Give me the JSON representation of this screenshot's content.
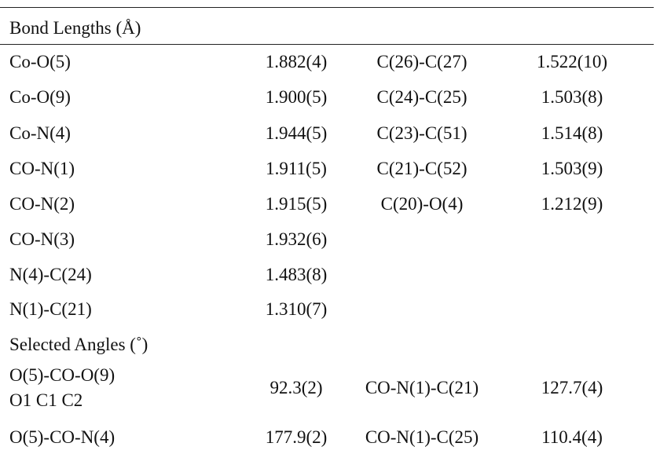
{
  "table": {
    "sections": [
      {
        "title": "Bond Lengths (Å)",
        "rows": [
          [
            "Co-O(5)",
            "1.882(4)",
            "C(26)-C(27)",
            "1.522(10)"
          ],
          [
            "Co-O(9)",
            "1.900(5)",
            "C(24)-C(25)",
            "1.503(8)"
          ],
          [
            "Co-N(4)",
            "1.944(5)",
            "C(23)-C(51)",
            "1.514(8)"
          ],
          [
            "CO-N(1)",
            "1.911(5)",
            "C(21)-C(52)",
            "1.503(9)"
          ],
          [
            "CO-N(2)",
            "1.915(5)",
            "C(20)-O(4)",
            "1.212(9)"
          ],
          [
            "CO-N(3)",
            "1.932(6)"
          ],
          [
            "N(4)-C(24)",
            "1.483(8)"
          ],
          [
            "N(1)-C(21)",
            "1.310(7)"
          ]
        ]
      },
      {
        "title": "Selected Angles (˚)",
        "rows": [
          [
            [
              "O(5)-CO-O(9)",
              "O1 C1 C2"
            ],
            "92.3(2)",
            "CO-N(1)-C(21)",
            "127.7(4)"
          ],
          [
            "O(5)-CO-N(4)",
            "177.9(2)",
            "CO-N(1)-C(25)",
            "110.4(4)"
          ]
        ]
      }
    ]
  }
}
